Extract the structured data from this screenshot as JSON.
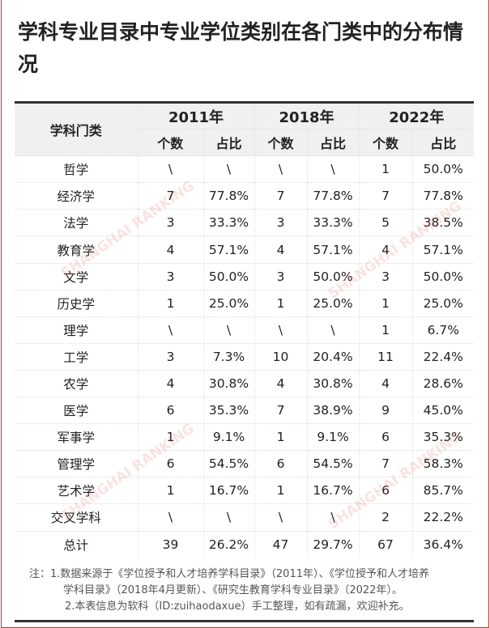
{
  "title": "学科专业目录中专业学位类别在各门类中的分布情况",
  "header": {
    "category": "学科门类",
    "years": [
      "2011年",
      "2018年",
      "2022年"
    ],
    "count": "个数",
    "ratio": "占比"
  },
  "rows": [
    [
      "哲学",
      "\\",
      "\\",
      "\\",
      "\\",
      "1",
      "50.0%"
    ],
    [
      "经济学",
      "7",
      "77.8%",
      "7",
      "77.8%",
      "7",
      "77.8%"
    ],
    [
      "法学",
      "3",
      "33.3%",
      "3",
      "33.3%",
      "5",
      "38.5%"
    ],
    [
      "教育学",
      "4",
      "57.1%",
      "4",
      "57.1%",
      "4",
      "57.1%"
    ],
    [
      "文学",
      "3",
      "50.0%",
      "3",
      "50.0%",
      "3",
      "50.0%"
    ],
    [
      "历史学",
      "1",
      "25.0%",
      "1",
      "25.0%",
      "1",
      "25.0%"
    ],
    [
      "理学",
      "\\",
      "\\",
      "\\",
      "\\",
      "1",
      "6.7%"
    ],
    [
      "工学",
      "3",
      "7.3%",
      "10",
      "20.4%",
      "11",
      "22.4%"
    ],
    [
      "农学",
      "4",
      "30.8%",
      "4",
      "30.8%",
      "4",
      "28.6%"
    ],
    [
      "医学",
      "6",
      "35.3%",
      "7",
      "38.9%",
      "9",
      "45.0%"
    ],
    [
      "军事学",
      "1",
      "9.1%",
      "1",
      "9.1%",
      "6",
      "35.3%"
    ],
    [
      "管理学",
      "6",
      "54.5%",
      "6",
      "54.5%",
      "7",
      "58.3%"
    ],
    [
      "艺术学",
      "1",
      "16.7%",
      "1",
      "16.7%",
      "6",
      "85.7%"
    ],
    [
      "交叉学科",
      "\\",
      "\\",
      "\\",
      "\\",
      "2",
      "22.2%"
    ],
    [
      "总计",
      "39",
      "26.2%",
      "47",
      "29.7%",
      "67",
      "36.4%"
    ]
  ],
  "notes": [
    "注：1.数据来源于《学位授予和人才培养学科目录》（2011年）、《学位授予和人才培养",
    "学科目录》（2018年4月更新）、《研究生教育学科专业目录》（2022年）。",
    "2.本表信息为软科（ID:zuihaodaxue）手工整理，如有疏漏，欢迎补充。"
  ],
  "watermark": "SHANGHAI RANKING",
  "colors": {
    "border": "#c9302c",
    "header_bg": "#f0f0f0"
  }
}
